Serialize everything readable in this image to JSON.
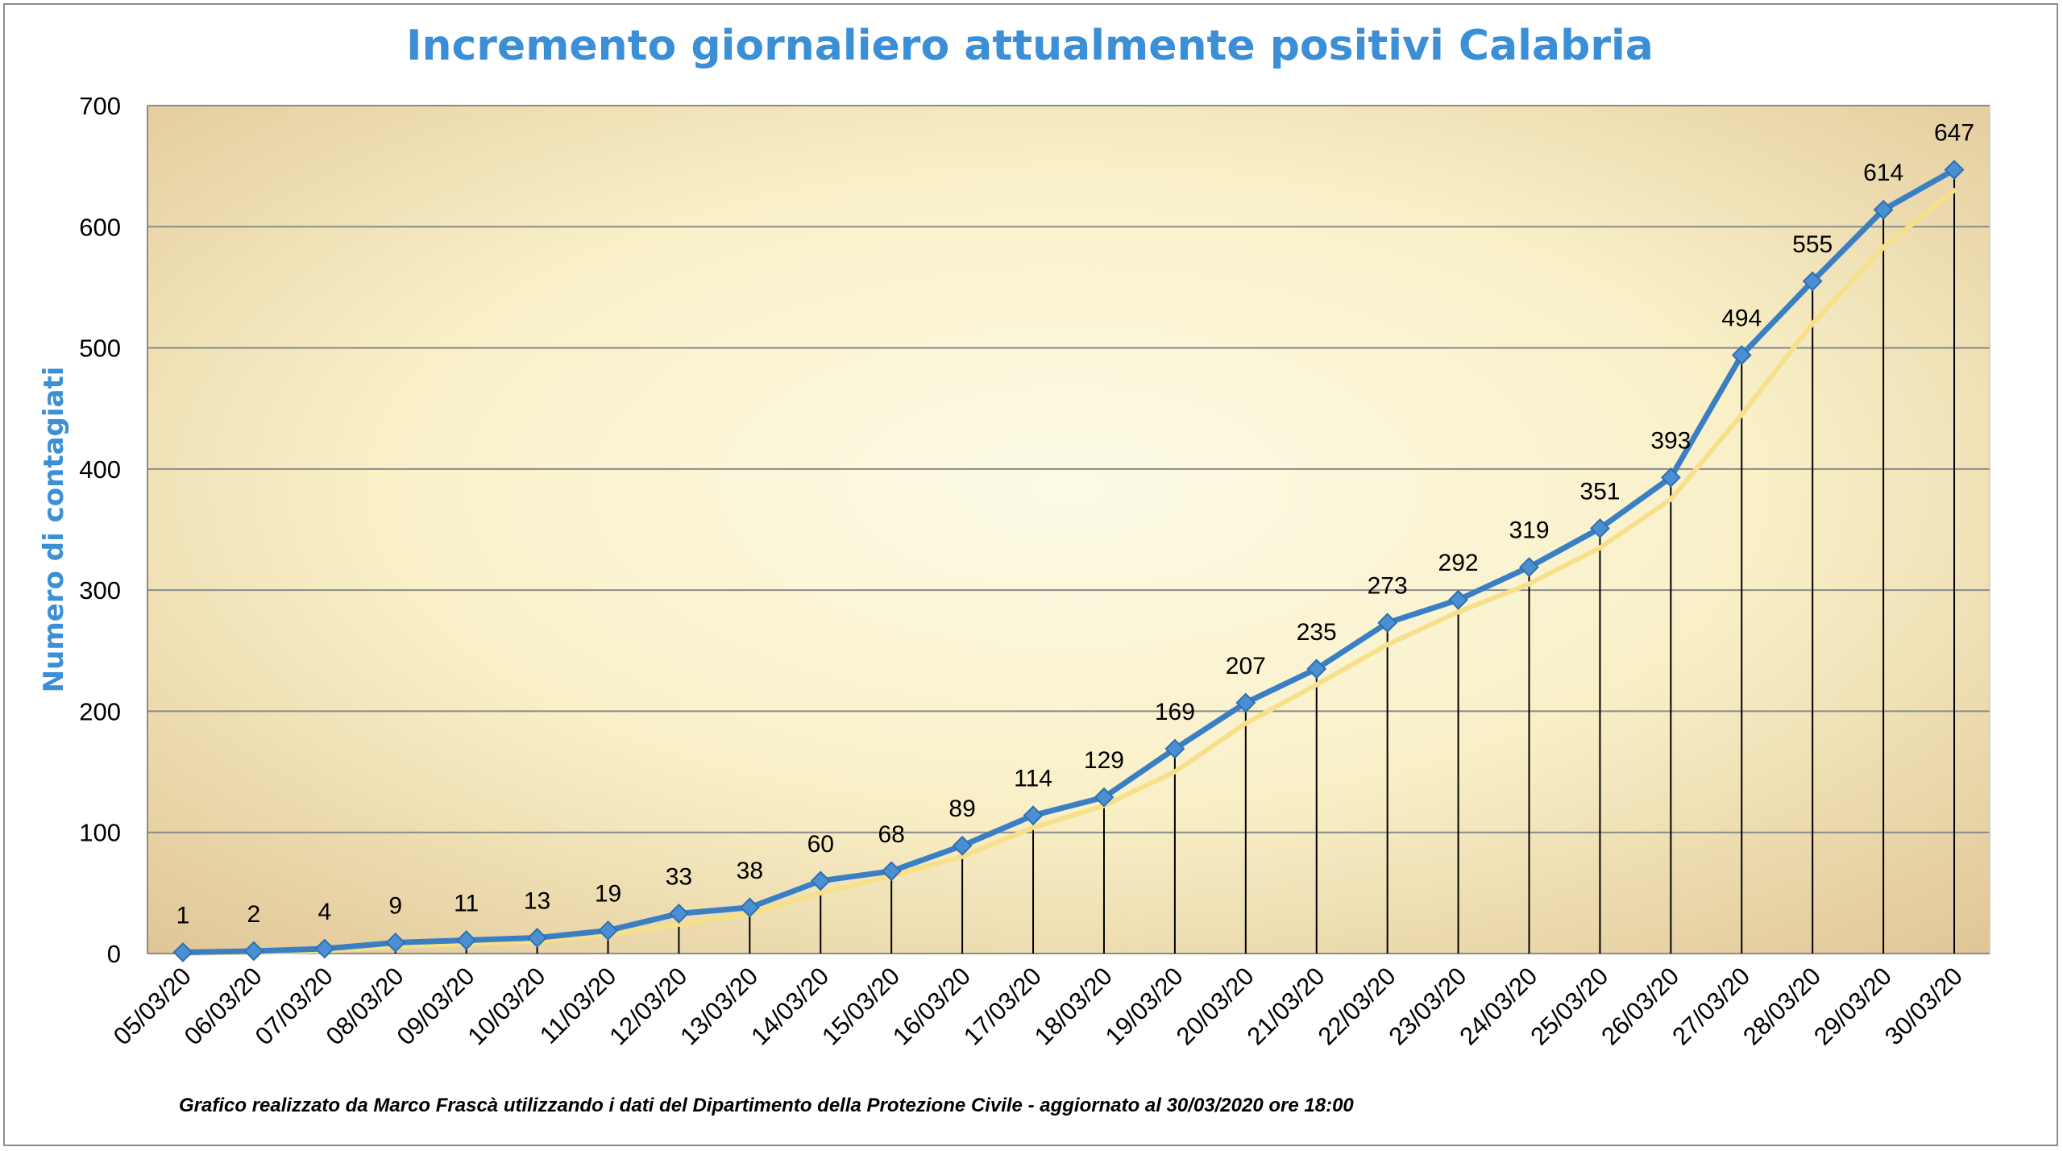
{
  "chart_data": {
    "type": "line",
    "title": "Incremento giornaliero attualmente positivi Calabria",
    "xlabel": "",
    "ylabel": "Numero di contagiati",
    "ylim": [
      0,
      700
    ],
    "yticks": [
      0,
      100,
      200,
      300,
      400,
      500,
      600,
      700
    ],
    "grid": true,
    "legend": "none",
    "categories": [
      "05/03/20",
      "06/03/20",
      "07/03/20",
      "08/03/20",
      "09/03/20",
      "10/03/20",
      "11/03/20",
      "12/03/20",
      "13/03/20",
      "14/03/20",
      "15/03/20",
      "16/03/20",
      "17/03/20",
      "18/03/20",
      "19/03/20",
      "20/03/20",
      "21/03/20",
      "22/03/20",
      "23/03/20",
      "24/03/20",
      "25/03/20",
      "26/03/20",
      "27/03/20",
      "28/03/20",
      "29/03/20",
      "30/03/20"
    ],
    "series": [
      {
        "values": [
          1,
          2,
          4,
          9,
          11,
          13,
          19,
          33,
          38,
          60,
          68,
          89,
          114,
          129,
          169,
          207,
          235,
          273,
          292,
          319,
          351,
          393,
          494,
          555,
          614,
          647
        ],
        "color": "#3a7fc4",
        "marker": "diamond",
        "data_labels": true
      },
      {
        "values": [
          0,
          1,
          2,
          6,
          8,
          10,
          16,
          24,
          33,
          50,
          64,
          80,
          104,
          122,
          150,
          190,
          222,
          255,
          282,
          305,
          335,
          375,
          445,
          520,
          583,
          630
        ],
        "color": "#f7e08a",
        "marker": "none",
        "data_labels": false
      }
    ],
    "drop_lines": true,
    "annotations": [
      "Grafico  realizzato da Marco Frascà  utilizzando i dati del Dipartimento  della Protezione Civile - aggiornato al 30/03/2020 ore 18:00"
    ],
    "colors": {
      "title": "#3b8fd6",
      "ylabel": "#3b8fd6",
      "plot_bg_center": "#fdfbe6",
      "plot_bg_edge": "#dfc595",
      "gridline": "#8a8a8a"
    }
  }
}
